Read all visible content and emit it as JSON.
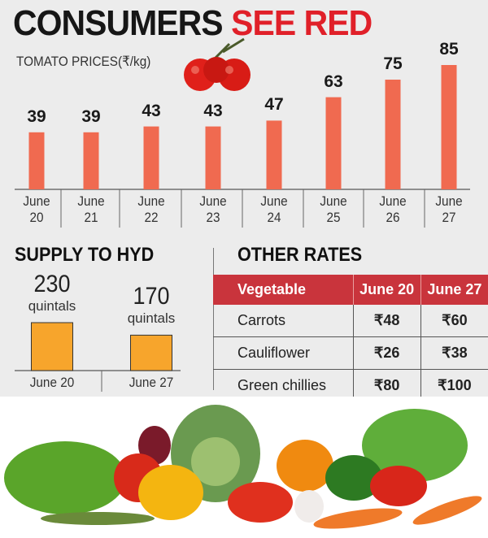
{
  "title_part1": "CONSUMERS",
  "title_part2": "SEE RED",
  "chart_data": [
    {
      "type": "bar",
      "title": "TOMATO PRICES(₹/kg)",
      "categories": [
        "June 20",
        "June 21",
        "June 22",
        "June 23",
        "June 24",
        "June 25",
        "June 26",
        "June 27"
      ],
      "category_lines": [
        [
          "June",
          "20"
        ],
        [
          "June",
          "21"
        ],
        [
          "June",
          "22"
        ],
        [
          "June",
          "23"
        ],
        [
          "June",
          "24"
        ],
        [
          "June",
          "25"
        ],
        [
          "June",
          "26"
        ],
        [
          "June",
          "27"
        ]
      ],
      "values": [
        39,
        39,
        43,
        43,
        47,
        63,
        75,
        85
      ],
      "bar_color": "#f06a50",
      "ylim": [
        0,
        85
      ],
      "grid": false
    },
    {
      "type": "bar",
      "title": "SUPPLY TO HYD",
      "categories": [
        "June 20",
        "June 27"
      ],
      "values": [
        230,
        170
      ],
      "unit": "quintals",
      "bar_color": "#f7a52c",
      "ylim": [
        0,
        230
      ]
    },
    {
      "type": "table",
      "title": "OTHER RATES",
      "headers": [
        "Vegetable",
        "June 20",
        "June 27"
      ],
      "rows": [
        [
          "Carrots",
          "₹48",
          "₹60"
        ],
        [
          "Cauliflower",
          "₹26",
          "₹38"
        ],
        [
          "Green chillies",
          "₹80",
          "₹100"
        ]
      ],
      "header_color": "#c9343c"
    }
  ]
}
